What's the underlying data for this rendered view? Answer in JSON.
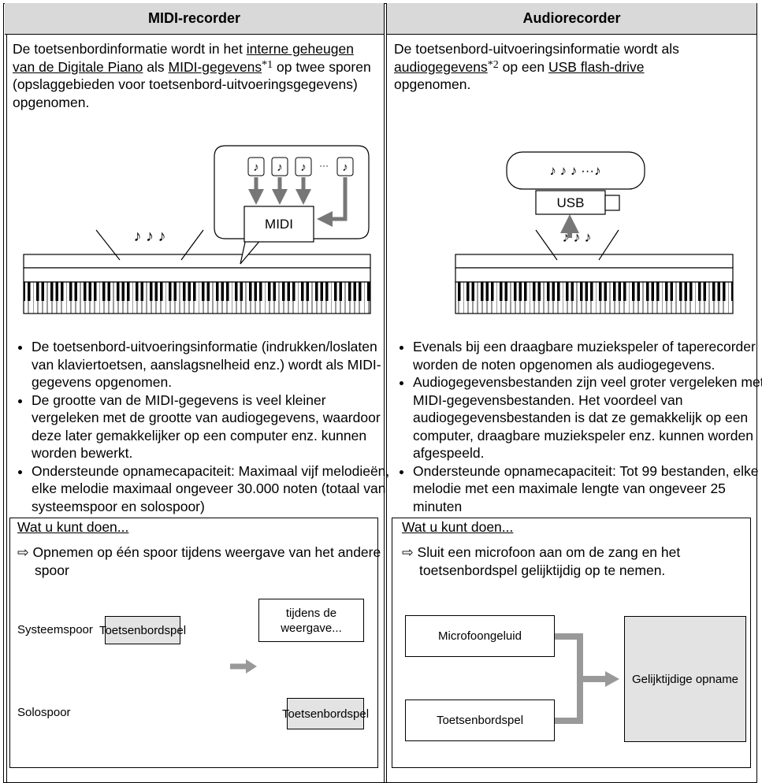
{
  "columns": [
    {
      "header": "MIDI-recorder",
      "intro": [
        "De toetsenbordinformatie wordt in het ",
        "interne geheugen van de Digitale Piano",
        " als ",
        "MIDI-gegevens",
        "*1",
        " op twee sporen (opslaggebieden voor toetsenbord-uitvoeringsgegevens) opgenomen."
      ],
      "diagram": {
        "keyboard_notes": "♪ ♪ ♪",
        "note_boxes": [
          "♪",
          "♪",
          "♪",
          "♪"
        ],
        "ellipsis": "···",
        "target": "MIDI"
      },
      "bullets": [
        "De toetsenbord-uitvoeringsinformatie (indrukken/loslaten van klaviertoetsen, aanslagsnelheid enz.) wordt als MIDI-gegevens opgenomen.",
        "De grootte van de MIDI-gegevens is veel kleiner vergeleken met de grootte van audiogegevens, waardoor deze later gemakkelijker op een computer enz. kunnen worden bewerkt.",
        "Ondersteunde opnamecapaciteit: Maximaal vijf melodieën, elke melodie maximaal ongeveer 30.000 noten (totaal van systeemspoor en solospoor)"
      ],
      "box": {
        "title": "Wat u kunt doen...",
        "item": "Opnemen op één spoor tijdens weergave van het andere spoor",
        "flow": {
          "track1": "Systeemspoor",
          "track1_box": "Toetsenbordspel",
          "playback": "tijdens de weergave...",
          "track2": "Solospoor",
          "track2_box": "Toetsenbordspel"
        }
      }
    },
    {
      "header": "Audiorecorder",
      "intro": [
        "De toetsenbord-uitvoeringsinformatie wordt als ",
        "audiogegevens",
        "*2",
        " op een ",
        "USB flash-drive",
        " opgenomen."
      ],
      "diagram": {
        "bubble_notes": "♪ ♪ ♪ ···♪",
        "usb": "USB",
        "keyboard_notes": "♪ ♪ ♪"
      },
      "bullets": [
        "Evenals bij een draagbare muziekspeler of taperecorder worden de noten opgenomen als audiogegevens.",
        "Audiogegevensbestanden zijn veel groter vergeleken met MIDI-gegevensbestanden. Het voordeel van audiogegevensbestanden is dat ze gemakkelijk op een computer, draagbare muziekspeler enz. kunnen worden afgespeeld.",
        "Ondersteunde opnamecapaciteit: Tot 99 bestanden, elke melodie met een maximale lengte van ongeveer 25 minuten"
      ],
      "box": {
        "title": "Wat u kunt doen...",
        "item": "Sluit een microfoon aan om de zang en het toetsenbordspel gelijktijdig op te nemen.",
        "flow": {
          "input1": "Microfoongeluid",
          "input2": "Toetsenbordspel",
          "result": "Gelijktijdige opname"
        }
      }
    }
  ]
}
